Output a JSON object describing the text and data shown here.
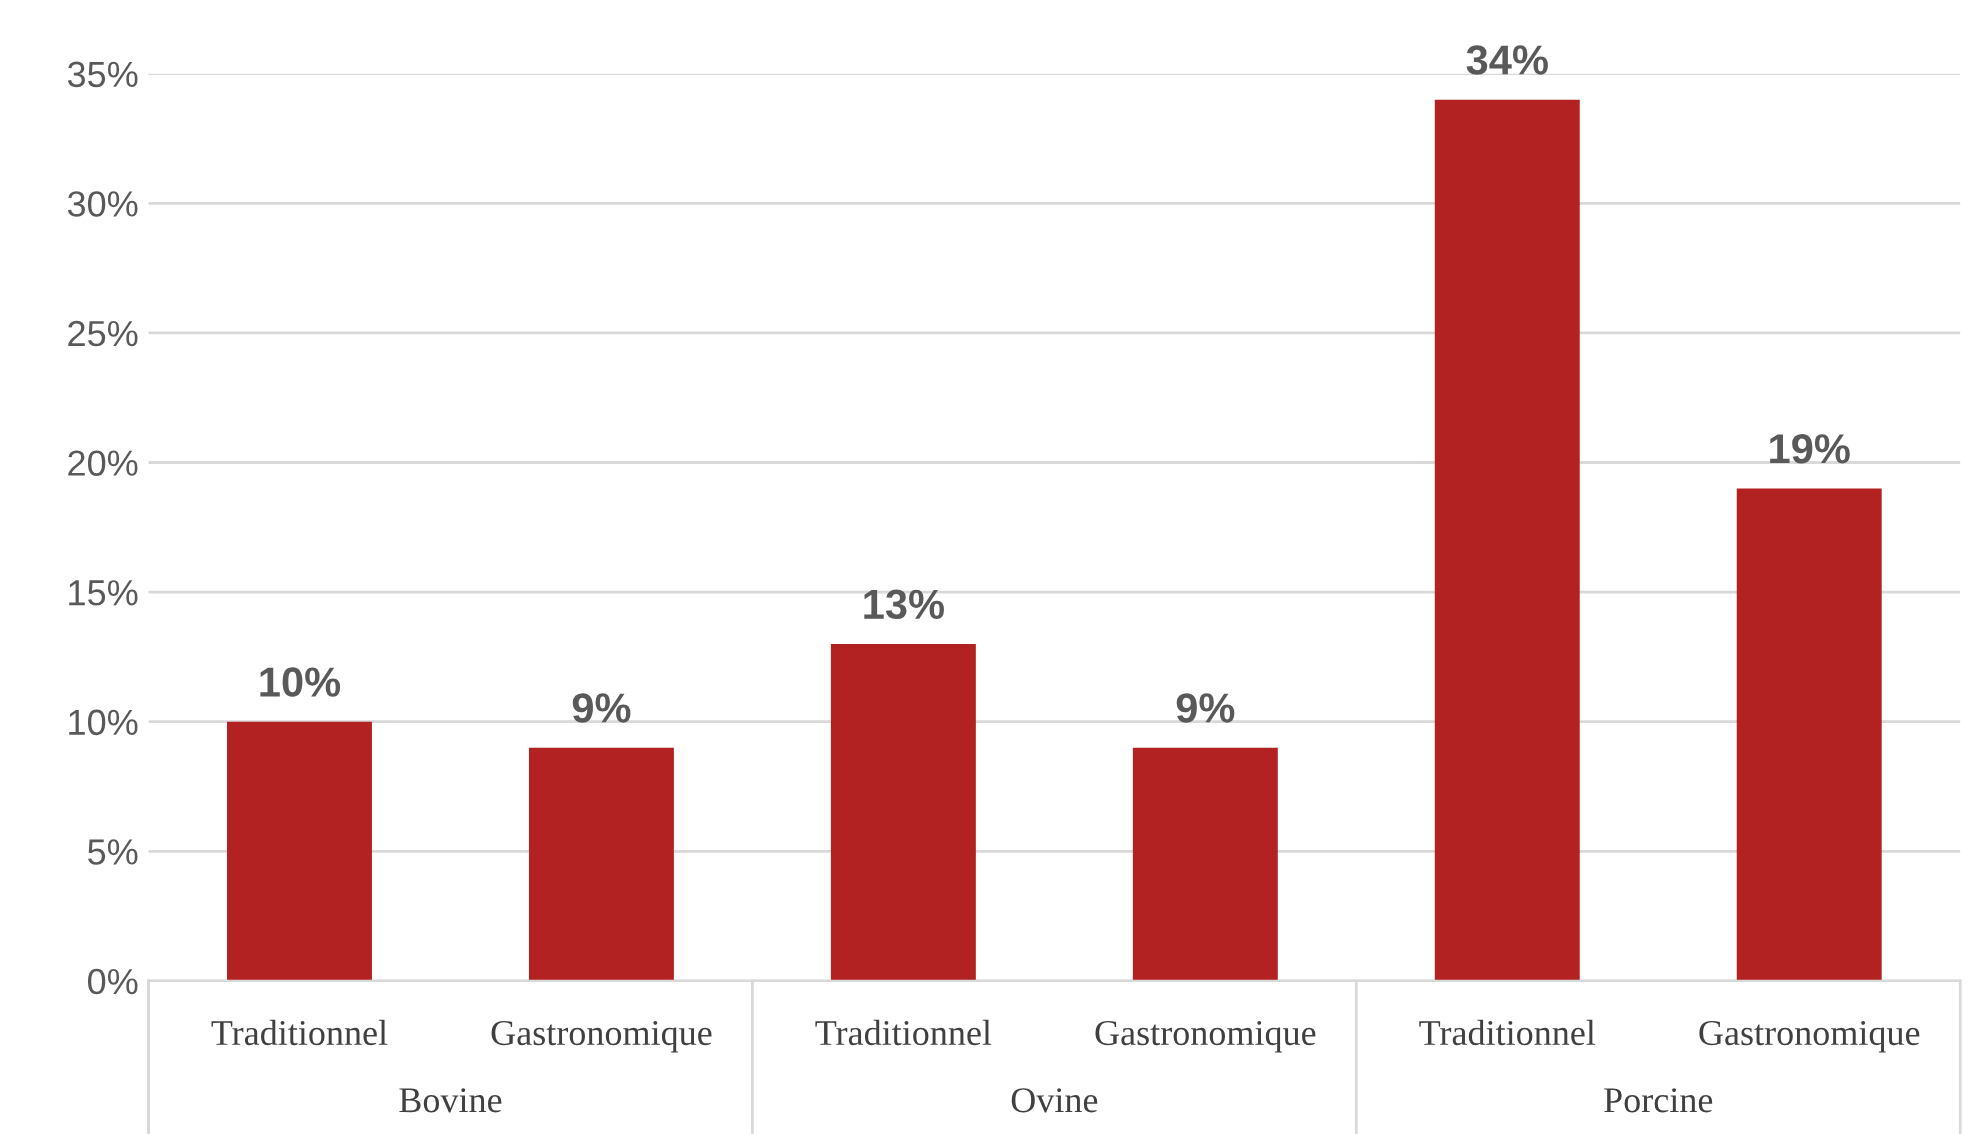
{
  "chart_data": {
    "type": "bar",
    "categories": [
      "Traditionnel",
      "Gastronomique",
      "Traditionnel",
      "Gastronomique",
      "Traditionnel",
      "Gastronomique"
    ],
    "values": [
      10,
      9,
      13,
      9,
      34,
      19
    ],
    "color": "#b22222",
    "value_labels": [
      "10%",
      "9%",
      "13%",
      "9%",
      "34%",
      "19%"
    ],
    "annotations": [
      "Bovine",
      "Ovine",
      "Porcine"
    ],
    "ylim": [
      0,
      35
    ],
    "yticks": [
      {
        "value": 0,
        "label": "0%"
      },
      {
        "value": 5,
        "label": "5%"
      },
      {
        "value": 10,
        "label": "10%"
      },
      {
        "value": 15,
        "label": "15%"
      },
      {
        "value": 20,
        "label": "20%"
      },
      {
        "value": 25,
        "label": "25%"
      },
      {
        "value": 30,
        "label": "30%"
      },
      {
        "value": 35,
        "label": "35%"
      }
    ],
    "grid": "y",
    "legend": false
  }
}
